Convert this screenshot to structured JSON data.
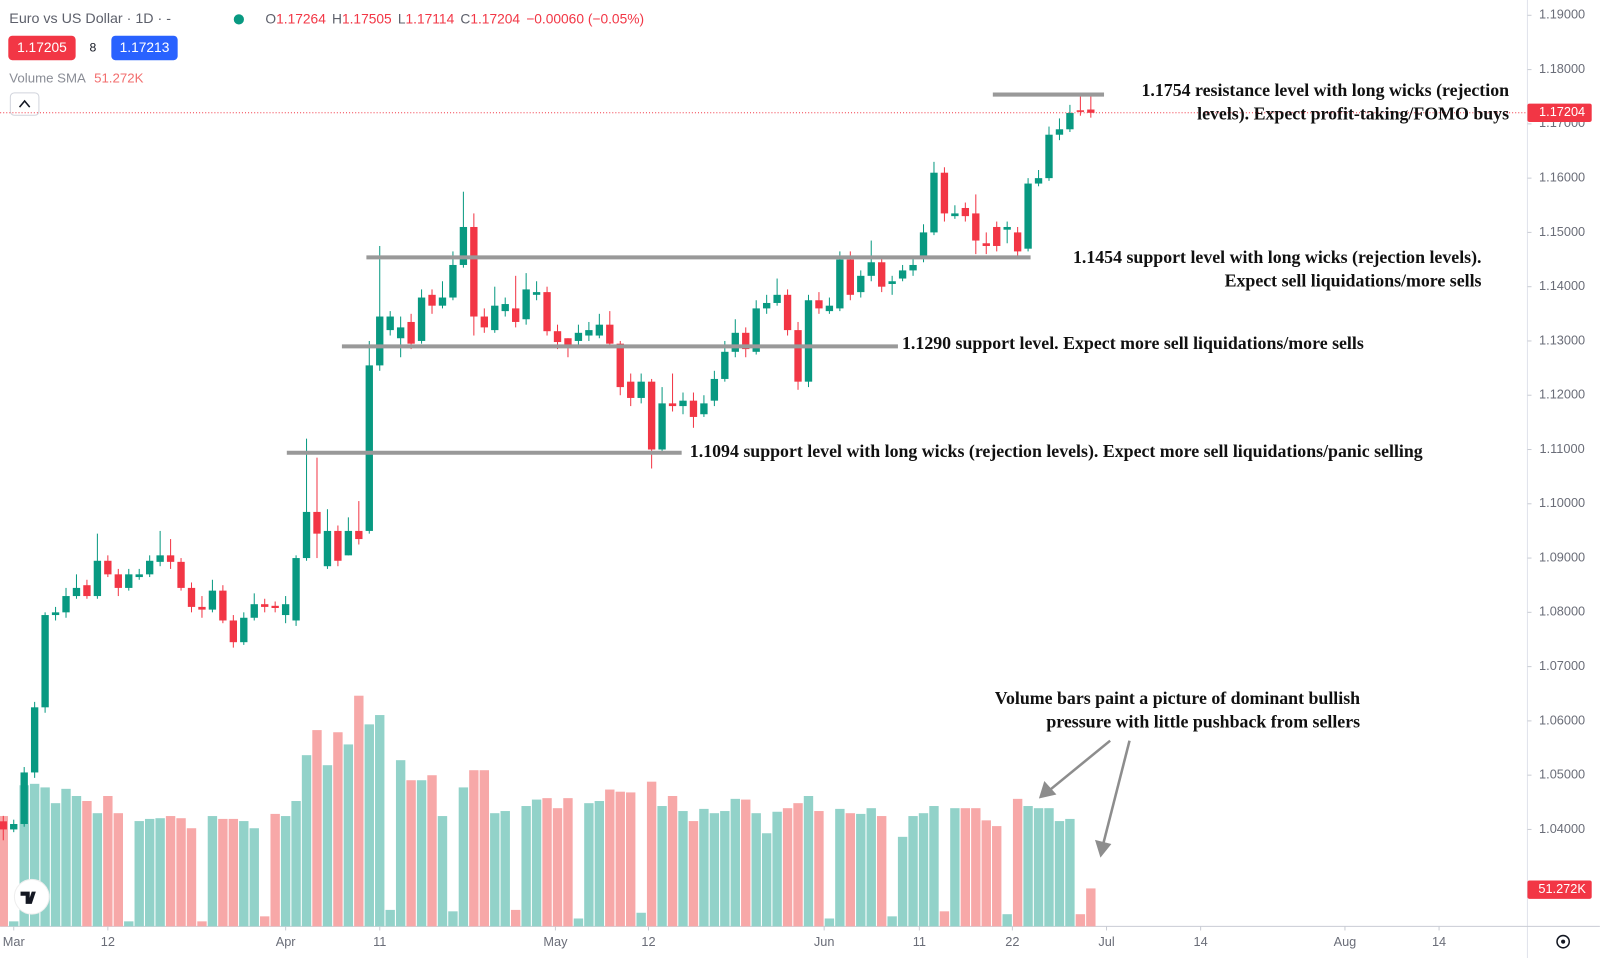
{
  "header": {
    "title": "Euro vs US Dollar · 1D · -",
    "o_label": "O",
    "open": 1.17264,
    "h_label": "H",
    "high": 1.17505,
    "l_label": "L",
    "low": 1.17114,
    "c_label": "C",
    "close": 1.17204,
    "change": "−0.00060 (−0.05%)",
    "bid": 1.17205,
    "spread": 8,
    "ask": 1.17213,
    "volume_sma_label": "Volume SMA",
    "volume_sma": {
      "value": 51272,
      "label": "51.272K"
    }
  },
  "chart_data": {
    "type": "candlestick",
    "up_color": "#089981",
    "down_color": "#f23645",
    "volume_up_color": "#92d2c9",
    "volume_down_color": "#f7a8a8",
    "xlim": [
      -0.3,
      145.75
    ],
    "xticks": [
      {
        "value": 1,
        "label": "Mar"
      },
      {
        "value": 10,
        "label": "12"
      },
      {
        "value": 27,
        "label": "Apr"
      },
      {
        "value": 36,
        "label": "11"
      },
      {
        "value": 52.8,
        "label": "May"
      },
      {
        "value": 61.7,
        "label": "12"
      },
      {
        "value": 78.5,
        "label": "Jun"
      },
      {
        "value": 87.6,
        "label": "11"
      },
      {
        "value": 96.5,
        "label": "22"
      },
      {
        "value": 105.5,
        "label": "Jul"
      },
      {
        "value": 114.5,
        "label": "14"
      },
      {
        "value": 128.3,
        "label": "Aug"
      },
      {
        "value": 137.3,
        "label": "14"
      }
    ],
    "ylim": [
      1.02214,
      1.19282
    ],
    "yticks": [
      {
        "value": 1.04,
        "label": "1.04000"
      },
      {
        "value": 1.05,
        "label": "1.05000"
      },
      {
        "value": 1.06,
        "label": "1.06000"
      },
      {
        "value": 1.07,
        "label": "1.07000"
      },
      {
        "value": 1.08,
        "label": "1.08000"
      },
      {
        "value": 1.09,
        "label": "1.09000"
      },
      {
        "value": 1.1,
        "label": "1.10000"
      },
      {
        "value": 1.11,
        "label": "1.11000"
      },
      {
        "value": 1.12,
        "label": "1.12000"
      },
      {
        "value": 1.13,
        "label": "1.13000"
      },
      {
        "value": 1.14,
        "label": "1.14000"
      },
      {
        "value": 1.15,
        "label": "1.15000"
      },
      {
        "value": 1.16,
        "label": "1.16000"
      },
      {
        "value": 1.17,
        "label": "1.17000"
      },
      {
        "value": 1.18,
        "label": "1.18000"
      },
      {
        "value": 1.19,
        "label": "1.19000"
      }
    ],
    "open": [
      1.0415,
      1.04,
      1.041,
      1.0505,
      1.0625,
      1.0795,
      1.08,
      1.083,
      1.085,
      1.083,
      1.0895,
      1.087,
      1.0845,
      1.0865,
      1.087,
      1.0893,
      1.0905,
      1.0893,
      1.0845,
      1.081,
      1.0805,
      1.084,
      1.0785,
      1.0745,
      1.079,
      1.0815,
      1.0812,
      1.0795,
      1.0785,
      1.09,
      1.0985,
      1.0885,
      1.095,
      1.0905,
      1.095,
      1.095,
      1.1255,
      1.132,
      1.1305,
      1.1335,
      1.13,
      1.1385,
      1.1365,
      1.138,
      1.144,
      1.151,
      1.1345,
      1.132,
      1.1355,
      1.136,
      1.134,
      1.1385,
      1.139,
      1.1318,
      1.1305,
      1.13,
      1.131,
      1.131,
      1.133,
      1.1295,
      1.1225,
      1.1195,
      1.1225,
      1.11,
      1.1185,
      1.118,
      1.119,
      1.1165,
      1.119,
      1.123,
      1.128,
      1.1315,
      1.128,
      1.136,
      1.137,
      1.1385,
      1.132,
      1.1225,
      1.1375,
      1.1355,
      1.136,
      1.145,
      1.139,
      1.142,
      1.1445,
      1.1405,
      1.1415,
      1.143,
      1.1455,
      1.15,
      1.161,
      1.153,
      1.1545,
      1.1535,
      1.148,
      1.151,
      1.1505,
      1.15,
      1.147,
      1.159,
      1.16,
      1.168,
      1.169,
      1.1725,
      1.17264
    ],
    "high": [
      1.0425,
      1.0418,
      1.0515,
      1.0635,
      1.08,
      1.081,
      1.0845,
      1.087,
      1.086,
      1.0945,
      1.0905,
      1.088,
      1.088,
      1.088,
      1.0905,
      1.095,
      1.0935,
      1.09,
      1.0855,
      1.083,
      1.086,
      1.085,
      1.0795,
      1.08,
      1.0835,
      1.0825,
      1.082,
      1.083,
      1.0905,
      1.112,
      1.1085,
      1.099,
      1.096,
      1.0975,
      1.1005,
      1.13,
      1.1475,
      1.1355,
      1.1345,
      1.135,
      1.1395,
      1.1395,
      1.141,
      1.1465,
      1.1575,
      1.1535,
      1.136,
      1.14,
      1.138,
      1.142,
      1.1425,
      1.141,
      1.14,
      1.133,
      1.1305,
      1.133,
      1.1335,
      1.135,
      1.1355,
      1.13,
      1.124,
      1.124,
      1.123,
      1.1215,
      1.124,
      1.1205,
      1.1205,
      1.12,
      1.1245,
      1.13,
      1.134,
      1.1325,
      1.1375,
      1.1385,
      1.1415,
      1.1395,
      1.1335,
      1.1385,
      1.139,
      1.138,
      1.1465,
      1.1465,
      1.143,
      1.1485,
      1.1455,
      1.142,
      1.144,
      1.1455,
      1.1515,
      1.163,
      1.162,
      1.155,
      1.1555,
      1.157,
      1.15,
      1.152,
      1.152,
      1.151,
      1.16,
      1.1615,
      1.1695,
      1.171,
      1.1735,
      1.1752,
      1.17505
    ],
    "low": [
      1.038,
      1.0395,
      1.0405,
      1.0495,
      1.0615,
      1.0785,
      1.079,
      1.0825,
      1.0825,
      1.0825,
      1.0865,
      1.083,
      1.084,
      1.086,
      1.0865,
      1.0885,
      1.088,
      1.084,
      1.08,
      1.079,
      1.08,
      1.078,
      1.0735,
      1.074,
      1.0785,
      1.08,
      1.08,
      1.078,
      1.0775,
      1.0895,
      1.09,
      1.088,
      1.0885,
      1.0905,
      1.0925,
      1.0945,
      1.1245,
      1.131,
      1.127,
      1.1285,
      1.1295,
      1.135,
      1.136,
      1.1375,
      1.1435,
      1.131,
      1.1315,
      1.1315,
      1.1345,
      1.1325,
      1.133,
      1.1375,
      1.131,
      1.1285,
      1.127,
      1.129,
      1.13,
      1.1305,
      1.129,
      1.12,
      1.118,
      1.1185,
      1.1065,
      1.1095,
      1.117,
      1.1165,
      1.114,
      1.116,
      1.118,
      1.1225,
      1.127,
      1.127,
      1.1275,
      1.135,
      1.1365,
      1.131,
      1.121,
      1.1215,
      1.135,
      1.135,
      1.1355,
      1.1375,
      1.138,
      1.141,
      1.139,
      1.1385,
      1.141,
      1.142,
      1.1445,
      1.1495,
      1.152,
      1.1525,
      1.152,
      1.146,
      1.146,
      1.1465,
      1.148,
      1.1455,
      1.1465,
      1.1585,
      1.1595,
      1.167,
      1.1685,
      1.1715,
      1.17114
    ],
    "close": [
      1.04,
      1.041,
      1.0505,
      1.0625,
      1.0795,
      1.08,
      1.083,
      1.0845,
      1.083,
      1.0895,
      1.087,
      1.0845,
      1.087,
      1.087,
      1.0895,
      1.0905,
      1.0893,
      1.0845,
      1.081,
      1.0805,
      1.084,
      1.0785,
      1.0745,
      1.079,
      1.0815,
      1.081,
      1.0808,
      1.0815,
      1.09,
      1.0985,
      1.0945,
      1.095,
      1.0895,
      1.095,
      1.0935,
      1.1255,
      1.1345,
      1.1345,
      1.1325,
      1.1295,
      1.138,
      1.1365,
      1.138,
      1.144,
      1.151,
      1.1345,
      1.1325,
      1.1365,
      1.1368,
      1.1335,
      1.1395,
      1.139,
      1.1318,
      1.1298,
      1.129,
      1.1315,
      1.132,
      1.133,
      1.1295,
      1.1215,
      1.1195,
      1.1225,
      1.11,
      1.1185,
      1.118,
      1.119,
      1.116,
      1.1185,
      1.123,
      1.128,
      1.1315,
      1.1285,
      1.136,
      1.137,
      1.1385,
      1.132,
      1.1225,
      1.1375,
      1.136,
      1.1365,
      1.145,
      1.1385,
      1.142,
      1.1445,
      1.14,
      1.141,
      1.143,
      1.144,
      1.15,
      1.161,
      1.1535,
      1.1535,
      1.153,
      1.1485,
      1.1475,
      1.1475,
      1.151,
      1.1465,
      1.159,
      1.16,
      1.168,
      1.169,
      1.172,
      1.1722,
      1.17204
    ],
    "volume": [
      154000,
      7000,
      197000,
      199000,
      194000,
      172000,
      192000,
      182000,
      175000,
      158000,
      182000,
      158000,
      7000,
      147000,
      150000,
      151000,
      154000,
      151000,
      137000,
      7000,
      154000,
      150000,
      150000,
      147000,
      137000,
      14000,
      157000,
      154000,
      175000,
      239000,
      274000,
      225000,
      271000,
      254000,
      322000,
      282000,
      295000,
      23000,
      232000,
      204000,
      204000,
      211000,
      154000,
      21000,
      194000,
      218000,
      218000,
      158000,
      161000,
      23000,
      168000,
      177000,
      179000,
      165000,
      179000,
      11000,
      172000,
      175000,
      191000,
      188000,
      187000,
      19000,
      202000,
      168000,
      182000,
      161000,
      147000,
      164000,
      158000,
      161000,
      178000,
      177000,
      158000,
      130000,
      160000,
      165000,
      172000,
      182000,
      161000,
      11000,
      164000,
      158000,
      157000,
      165000,
      154000,
      14000,
      125000,
      154000,
      158000,
      168000,
      21000,
      165000,
      165000,
      165000,
      148000,
      140000,
      17000,
      178000,
      168000,
      165000,
      165000,
      147000,
      150000,
      17000,
      53000
    ],
    "annotations": [
      {
        "level": 1.1754,
        "lines": [
          "1.1754 resistance level with long wicks (rejection",
          "levels). Expect profit-taking/FOMO buys"
        ]
      },
      {
        "level": 1.1454,
        "lines": [
          "1.1454 support level with long wicks (rejection levels).",
          "Expect sell liquidations/more sells"
        ]
      },
      {
        "level": 1.129,
        "lines": [
          "1.1290 support level. Expect more sell liquidations/more sells"
        ]
      },
      {
        "level": 1.1094,
        "lines": [
          "1.1094 support level with long wicks (rejection levels). Expect more sell liquidations/panic selling"
        ]
      }
    ],
    "volume_note": {
      "lines": [
        "Volume bars paint a picture of dominant bullish",
        "pressure with little pushback from sellers"
      ]
    }
  }
}
